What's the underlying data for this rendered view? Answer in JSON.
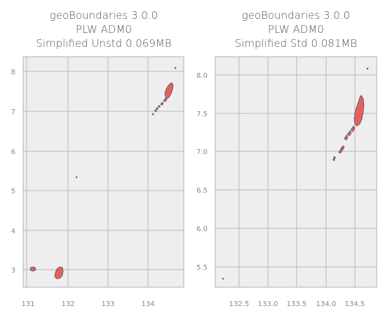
{
  "panels": [
    {
      "title_lines": [
        "geoBoundaries 3.0.0",
        "PLW ADM0",
        "Simplified Unstd 0.069MB"
      ],
      "x_ticks": [
        "131",
        "132",
        "133",
        "134"
      ],
      "y_ticks": [
        "3",
        "4",
        "5",
        "6",
        "7",
        "8"
      ]
    },
    {
      "title_lines": [
        "geoBoundaries 3.0.0",
        "PLW ADM0",
        "Simplified Std 0.081MB"
      ],
      "x_ticks": [
        "132.5",
        "133.0",
        "133.5",
        "134.0",
        "134.5"
      ],
      "y_ticks": [
        "5.5",
        "6.0",
        "6.5",
        "7.0",
        "7.5",
        "8.0"
      ]
    }
  ],
  "colors": {
    "axes_bg": "#eeeeee",
    "grid": "#b8b8b8",
    "frame": "#bbbbbb",
    "fill": "#e46060",
    "edge": "#555555"
  }
}
